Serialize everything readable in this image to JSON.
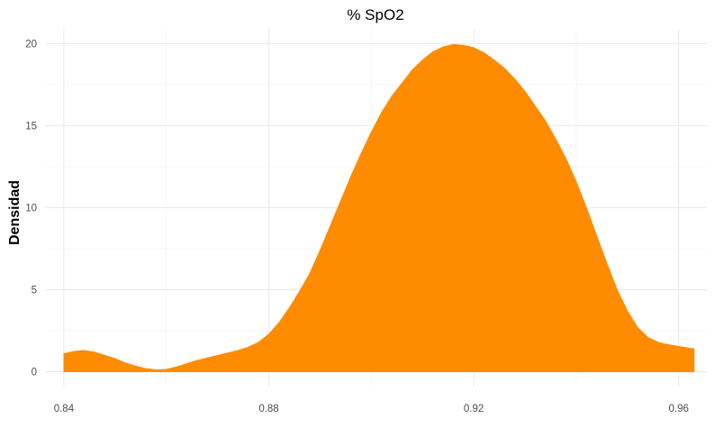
{
  "chart_data": {
    "type": "area",
    "title": "% SpO2",
    "xlabel": "",
    "ylabel": "Densidad",
    "xlim": [
      0.8365,
      0.9655
    ],
    "ylim": [
      -0.9,
      20.9
    ],
    "x_ticks": [
      0.84,
      0.88,
      0.92,
      0.96
    ],
    "x_tick_labels": [
      "0.84",
      "0.88",
      "0.92",
      "0.96"
    ],
    "y_ticks": [
      0,
      5,
      10,
      15,
      20
    ],
    "y_tick_labels": [
      "0",
      "5",
      "10",
      "15",
      "20"
    ],
    "grid": true,
    "legend": "none",
    "fill_color": "#FF8C00",
    "x": [
      0.84,
      0.842,
      0.844,
      0.846,
      0.848,
      0.85,
      0.852,
      0.854,
      0.856,
      0.858,
      0.86,
      0.862,
      0.864,
      0.866,
      0.868,
      0.87,
      0.872,
      0.874,
      0.876,
      0.878,
      0.88,
      0.882,
      0.884,
      0.886,
      0.888,
      0.89,
      0.892,
      0.894,
      0.896,
      0.898,
      0.9,
      0.902,
      0.904,
      0.906,
      0.908,
      0.91,
      0.912,
      0.914,
      0.916,
      0.918,
      0.92,
      0.922,
      0.924,
      0.926,
      0.928,
      0.93,
      0.932,
      0.934,
      0.936,
      0.938,
      0.94,
      0.942,
      0.944,
      0.946,
      0.948,
      0.95,
      0.952,
      0.954,
      0.956,
      0.958,
      0.96,
      0.962,
      0.963
    ],
    "y": [
      1.1,
      1.25,
      1.3,
      1.2,
      1.0,
      0.8,
      0.55,
      0.35,
      0.2,
      0.12,
      0.15,
      0.3,
      0.5,
      0.7,
      0.85,
      1.0,
      1.15,
      1.3,
      1.5,
      1.8,
      2.3,
      3.0,
      3.9,
      4.9,
      6.0,
      7.4,
      8.9,
      10.4,
      11.9,
      13.3,
      14.6,
      15.8,
      16.8,
      17.6,
      18.4,
      19.0,
      19.5,
      19.8,
      19.95,
      19.9,
      19.75,
      19.45,
      19.0,
      18.5,
      17.85,
      17.1,
      16.2,
      15.3,
      14.2,
      13.0,
      11.6,
      10.0,
      8.3,
      6.6,
      5.0,
      3.7,
      2.7,
      2.1,
      1.8,
      1.65,
      1.55,
      1.45,
      1.4
    ]
  }
}
